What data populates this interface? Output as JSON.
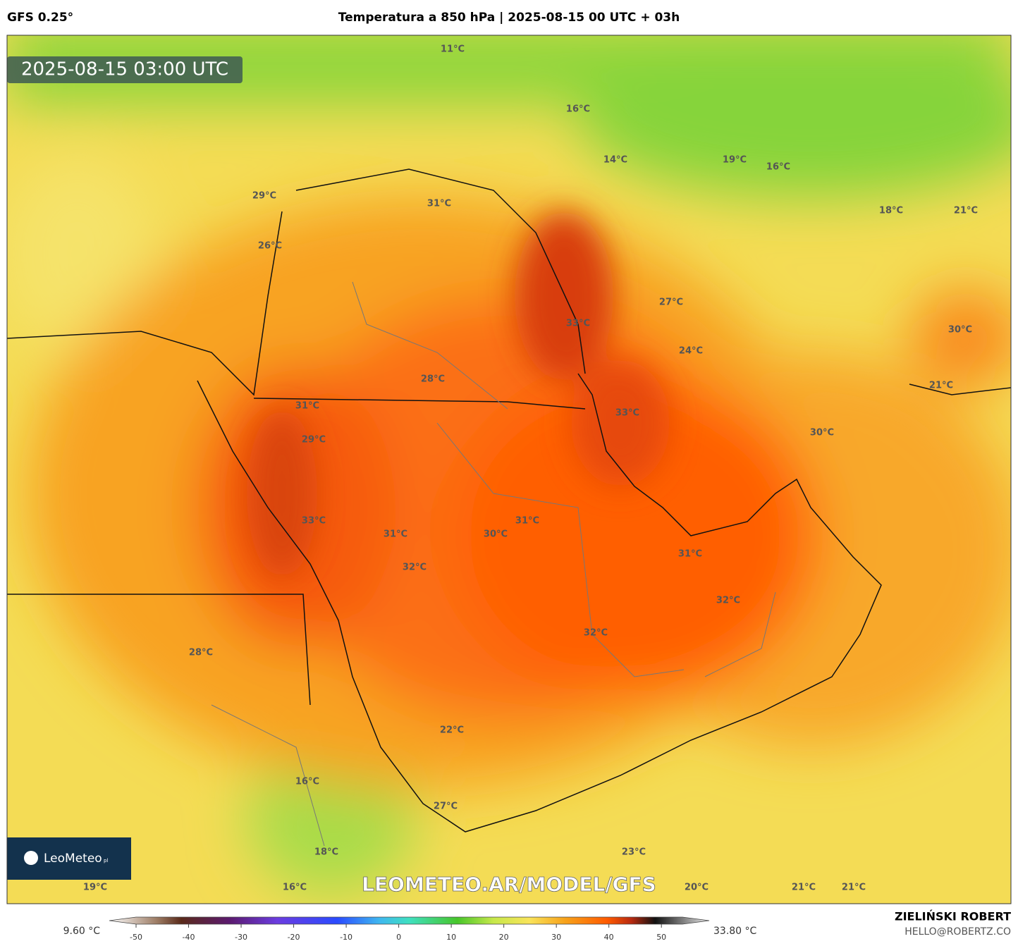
{
  "header": {
    "model": "GFS 0.25°",
    "title": "Temperatura a 850 hPa | 2025-08-15 00 UTC + 03h"
  },
  "timestamp": "2025-08-15 03:00 UTC",
  "labels": [
    "11°C",
    "16°C",
    "14°C",
    "19°C",
    "16°C",
    "29°C",
    "31°C",
    "18°C",
    "21°C",
    "26°C",
    "27°C",
    "33°C",
    "30°C",
    "24°C",
    "28°C",
    "21°C",
    "31°C",
    "33°C",
    "30°C",
    "29°C",
    "31°C",
    "33°C",
    "31°C",
    "30°C",
    "31°C",
    "32°C",
    "32°C",
    "32°C",
    "28°C",
    "22°C",
    "16°C",
    "27°C",
    "18°C",
    "23°C",
    "19°C",
    "16°C",
    "20°C",
    "21°C",
    "21°C"
  ],
  "watermark": "LEOMETEO.AR/MODEL/GFS",
  "logo": {
    "name": "LeoMeteo",
    "suffix": "pl"
  },
  "legend": {
    "min_label": "9.60 °C",
    "max_label": "33.80 °C",
    "lim": [
      -50,
      54
    ],
    "ticks": [
      -50,
      -40,
      -30,
      -20,
      -10,
      0,
      10,
      20,
      30,
      40,
      50
    ]
  },
  "author": {
    "name": "ZIELIŃSKI ROBERT",
    "email": "HELLO@ROBERTZ.CO"
  }
}
